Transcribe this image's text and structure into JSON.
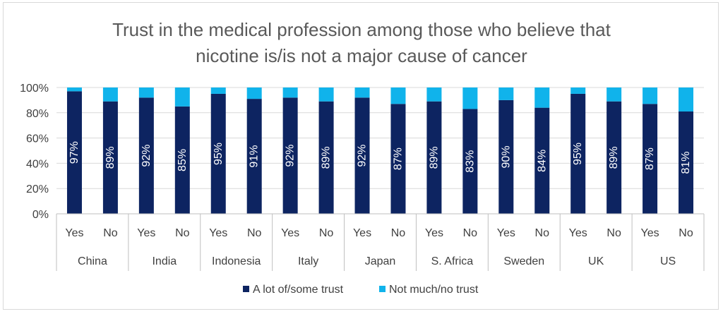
{
  "chart_data": {
    "type": "bar",
    "stacked": true,
    "percent": true,
    "title": [
      "Trust in the medical profession among those who believe that",
      "nicotine is/is not a major cause of cancer"
    ],
    "groups": [
      "China",
      "India",
      "Indonesia",
      "Italy",
      "Japan",
      "S. Africa",
      "Sweden",
      "UK",
      "US"
    ],
    "subcategories": [
      "Yes",
      "No"
    ],
    "ylim": [
      0,
      100
    ],
    "yticks": [
      "0%",
      "20%",
      "40%",
      "60%",
      "80%",
      "100%"
    ],
    "series": [
      {
        "name": "A lot of/some trust",
        "color": "#0d2461",
        "values": [
          97,
          89,
          92,
          85,
          95,
          91,
          92,
          89,
          92,
          87,
          89,
          83,
          90,
          84,
          95,
          89,
          87,
          81
        ],
        "labels": [
          "97%",
          "89%",
          "92%",
          "85%",
          "95%",
          "91%",
          "92%",
          "89%",
          "92%",
          "87%",
          "89%",
          "83%",
          "90%",
          "84%",
          "95%",
          "89%",
          "87%",
          "81%"
        ]
      },
      {
        "name": "Not much/no trust",
        "color": "#10b3eb",
        "values": [
          3,
          11,
          8,
          15,
          5,
          9,
          8,
          11,
          8,
          13,
          11,
          17,
          10,
          16,
          5,
          11,
          13,
          19
        ]
      }
    ],
    "legend_position": "bottom"
  }
}
